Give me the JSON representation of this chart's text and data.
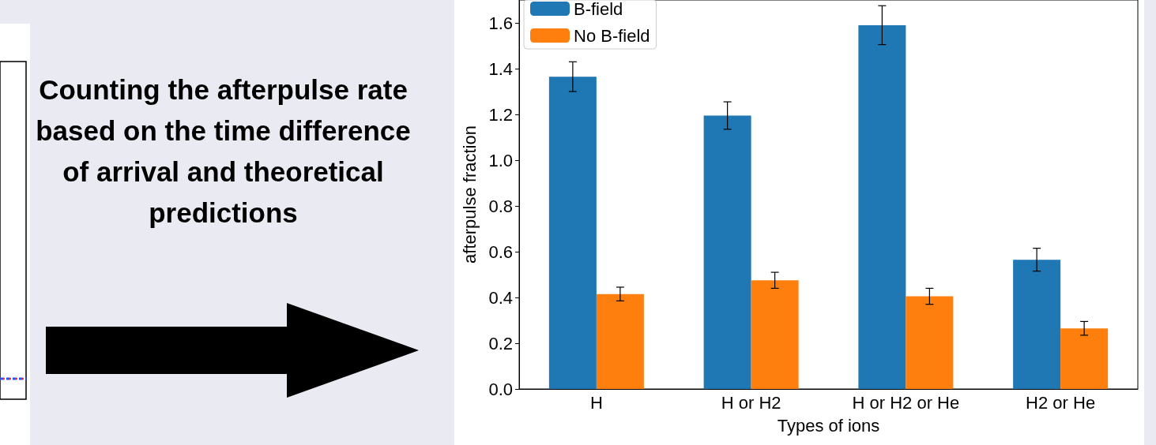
{
  "chart_data": {
    "type": "bar",
    "xlabel": "Types of ions",
    "ylabel": "afterpulse fraction",
    "categories": [
      "H",
      "H or H2",
      "H or H2 or He",
      "H2 or He"
    ],
    "series": [
      {
        "name": "B-field",
        "color": "#1f77b4",
        "values": [
          1.365,
          1.195,
          1.59,
          0.565
        ],
        "errors": [
          0.065,
          0.06,
          0.085,
          0.05
        ]
      },
      {
        "name": "No B-field",
        "color": "#ff7f0e",
        "values": [
          0.415,
          0.475,
          0.405,
          0.265
        ],
        "errors": [
          0.03,
          0.035,
          0.035,
          0.03
        ]
      }
    ],
    "ylim": [
      0,
      1.7
    ],
    "yticks": [
      {
        "value": 0,
        "label": "0.0"
      },
      0.2,
      0.4,
      0.6,
      0.8,
      {
        "value": 1,
        "label": "1.0"
      },
      1.2,
      1.4,
      1.6
    ],
    "grid": false,
    "legend": "top left",
    "annotations": [
      "Counting the afterpulse rate based on the time difference of arrival and theoretical predictions"
    ]
  }
}
